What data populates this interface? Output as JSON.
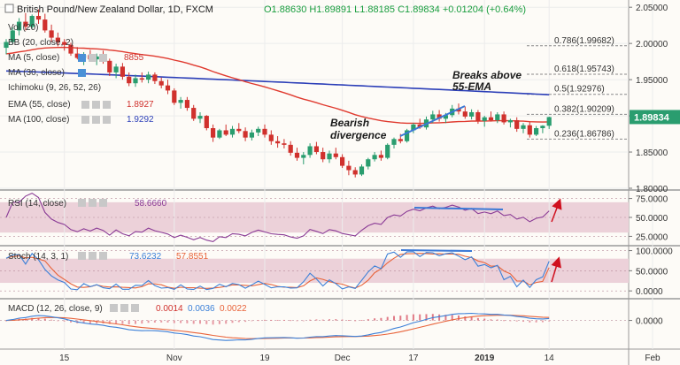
{
  "header": {
    "title": "British Pound/New Zealand Dollar, 1D, FXCM",
    "ohlc": "O1.88630  H1.89891  L1.88185  C1.89834  +0.01204 (+0.64%)",
    "change_color": "#1a9e3f"
  },
  "legend": {
    "vol": "Vol (20)",
    "bb": "BB (20, close, 2)",
    "ma5": "MA (5, close)",
    "ma5_value": "8855",
    "ma30": "MA (30, close)",
    "ichimoku": "Ichimoku (9, 26, 52, 26)",
    "ema55": "EMA (55, close)",
    "ema55_value": "1.8927",
    "ma100": "MA (100, close)",
    "ma100_value": "1.9292"
  },
  "annotations": {
    "breaks_line1": "Breaks above",
    "breaks_line2": "55-EMA",
    "bearish_line1": "Bearish",
    "bearish_line2": "divergence"
  },
  "fib_levels": [
    {
      "label": "0.786(1.99682)",
      "value": 1.99682
    },
    {
      "label": "0.618(1.95743)",
      "value": 1.95743
    },
    {
      "label": "0.5(1.92976)",
      "value": 1.92976
    },
    {
      "label": "0.382(1.90209)",
      "value": 1.90209
    },
    {
      "label": "0.236(1.86786)",
      "value": 1.86786
    }
  ],
  "price_axis": {
    "ticks": [
      "2.05000",
      "2.00000",
      "1.95000",
      "1.90000",
      "1.85000",
      "1.80000"
    ],
    "tick_values": [
      2.05,
      2.0,
      1.95,
      1.9,
      1.85,
      1.8
    ],
    "current_label": "1.89834",
    "current_value": 1.89834,
    "ylim": [
      1.8,
      2.06
    ]
  },
  "rsi": {
    "label": "RSI (14, close)",
    "value": "58.6660",
    "ticks": [
      "75.0000",
      "50.0000",
      "25.0000"
    ],
    "tick_values": [
      75,
      50,
      25
    ],
    "ylim": [
      15,
      85
    ],
    "band": [
      30,
      70
    ]
  },
  "stoch": {
    "label": "Stoch (14, 3, 1)",
    "k_value": "73.6232",
    "d_value": "57.8551",
    "ticks": [
      "100.0000",
      "50.0000",
      "0.0000"
    ],
    "tick_values": [
      100,
      50,
      0
    ],
    "ylim": [
      -15,
      110
    ],
    "band": [
      20,
      80
    ]
  },
  "macd": {
    "label": "MACD (12, 26, close, 9)",
    "hist": "0.0014",
    "macd_val": "0.0036",
    "signal": "0.0022",
    "ticks": [
      "0.0000"
    ],
    "tick_values": [
      0
    ],
    "ylim": [
      -0.04,
      0.03
    ]
  },
  "time_axis": {
    "labels": [
      "15",
      "Nov",
      "19",
      "Dec",
      "17",
      "2019",
      "14",
      "Feb"
    ],
    "label_index": [
      9,
      26,
      40,
      52,
      63,
      74,
      84,
      100
    ]
  },
  "colors": {
    "up": "#2a9d6f",
    "down": "#d0312d",
    "ema": "#e03a2f",
    "ma100": "#2c3fb8",
    "rsi": "#8a3b96",
    "stoch_k": "#3c80d8",
    "stoch_d": "#e8633a",
    "trend": "#3a78d6",
    "arrow": "#d0101e",
    "band": "#ecd1d9"
  },
  "chart_data": {
    "type": "candlestick",
    "title": "British Pound/New Zealand Dollar, 1D, FXCM",
    "x_start": 0,
    "candles": [
      [
        1.994,
        2.006,
        1.985,
        2.002
      ],
      [
        2.002,
        2.022,
        1.999,
        2.018
      ],
      [
        2.018,
        2.035,
        2.011,
        2.03
      ],
      [
        2.03,
        2.042,
        2.018,
        2.023
      ],
      [
        2.023,
        2.04,
        2.02,
        2.038
      ],
      [
        2.038,
        2.047,
        2.027,
        2.033
      ],
      [
        2.033,
        2.041,
        2.015,
        2.018
      ],
      [
        2.018,
        2.026,
        2.002,
        2.008
      ],
      [
        2.008,
        2.015,
        1.996,
        2.002
      ],
      [
        2.002,
        2.006,
        1.99,
        1.998
      ],
      [
        1.998,
        2.001,
        1.983,
        1.986
      ],
      [
        1.986,
        1.995,
        1.978,
        1.98
      ],
      [
        1.98,
        1.988,
        1.97,
        1.984
      ],
      [
        1.984,
        1.991,
        1.976,
        1.978
      ],
      [
        1.978,
        1.986,
        1.97,
        1.982
      ],
      [
        1.982,
        1.99,
        1.972,
        1.976
      ],
      [
        1.976,
        1.979,
        1.955,
        1.96
      ],
      [
        1.96,
        1.972,
        1.952,
        1.968
      ],
      [
        1.968,
        1.973,
        1.95,
        1.954
      ],
      [
        1.954,
        1.96,
        1.941,
        1.945
      ],
      [
        1.945,
        1.957,
        1.94,
        1.952
      ],
      [
        1.952,
        1.96,
        1.946,
        1.95
      ],
      [
        1.95,
        1.961,
        1.945,
        1.957
      ],
      [
        1.957,
        1.96,
        1.944,
        1.948
      ],
      [
        1.948,
        1.953,
        1.938,
        1.942
      ],
      [
        1.942,
        1.95,
        1.93,
        1.935
      ],
      [
        1.935,
        1.938,
        1.915,
        1.918
      ],
      [
        1.918,
        1.926,
        1.91,
        1.922
      ],
      [
        1.922,
        1.926,
        1.907,
        1.911
      ],
      [
        1.911,
        1.915,
        1.893,
        1.896
      ],
      [
        1.896,
        1.905,
        1.89,
        1.9
      ],
      [
        1.9,
        1.901,
        1.88,
        1.883
      ],
      [
        1.883,
        1.888,
        1.864,
        1.87
      ],
      [
        1.87,
        1.882,
        1.868,
        1.88
      ],
      [
        1.88,
        1.888,
        1.872,
        1.874
      ],
      [
        1.874,
        1.886,
        1.87,
        1.882
      ],
      [
        1.882,
        1.89,
        1.876,
        1.879
      ],
      [
        1.879,
        1.884,
        1.865,
        1.87
      ],
      [
        1.87,
        1.881,
        1.866,
        1.877
      ],
      [
        1.877,
        1.885,
        1.872,
        1.882
      ],
      [
        1.882,
        1.888,
        1.87,
        1.874
      ],
      [
        1.874,
        1.88,
        1.86,
        1.865
      ],
      [
        1.865,
        1.872,
        1.856,
        1.862
      ],
      [
        1.862,
        1.868,
        1.855,
        1.86
      ],
      [
        1.86,
        1.865,
        1.845,
        1.849
      ],
      [
        1.849,
        1.856,
        1.838,
        1.842
      ],
      [
        1.842,
        1.85,
        1.833,
        1.846
      ],
      [
        1.846,
        1.862,
        1.842,
        1.858
      ],
      [
        1.858,
        1.864,
        1.847,
        1.85
      ],
      [
        1.85,
        1.856,
        1.836,
        1.84
      ],
      [
        1.84,
        1.852,
        1.835,
        1.848
      ],
      [
        1.848,
        1.856,
        1.84,
        1.843
      ],
      [
        1.843,
        1.847,
        1.828,
        1.831
      ],
      [
        1.831,
        1.838,
        1.818,
        1.825
      ],
      [
        1.825,
        1.829,
        1.815,
        1.819
      ],
      [
        1.819,
        1.833,
        1.817,
        1.83
      ],
      [
        1.83,
        1.842,
        1.826,
        1.84
      ],
      [
        1.84,
        1.85,
        1.837,
        1.846
      ],
      [
        1.846,
        1.852,
        1.838,
        1.842
      ],
      [
        1.842,
        1.862,
        1.84,
        1.86
      ],
      [
        1.86,
        1.87,
        1.855,
        1.868
      ],
      [
        1.868,
        1.875,
        1.862,
        1.865
      ],
      [
        1.865,
        1.882,
        1.863,
        1.88
      ],
      [
        1.88,
        1.89,
        1.876,
        1.888
      ],
      [
        1.888,
        1.896,
        1.882,
        1.884
      ],
      [
        1.884,
        1.899,
        1.881,
        1.895
      ],
      [
        1.895,
        1.907,
        1.89,
        1.902
      ],
      [
        1.902,
        1.908,
        1.892,
        1.896
      ],
      [
        1.896,
        1.904,
        1.89,
        1.901
      ],
      [
        1.901,
        1.915,
        1.898,
        1.91
      ],
      [
        1.91,
        1.917,
        1.902,
        1.906
      ],
      [
        1.906,
        1.913,
        1.896,
        1.899
      ],
      [
        1.899,
        1.909,
        1.895,
        1.905
      ],
      [
        1.905,
        1.908,
        1.889,
        1.893
      ],
      [
        1.893,
        1.9,
        1.885,
        1.898
      ],
      [
        1.898,
        1.906,
        1.892,
        1.894
      ],
      [
        1.894,
        1.905,
        1.89,
        1.902
      ],
      [
        1.902,
        1.906,
        1.888,
        1.891
      ],
      [
        1.891,
        1.896,
        1.884,
        1.894
      ],
      [
        1.894,
        1.898,
        1.878,
        1.882
      ],
      [
        1.882,
        1.89,
        1.876,
        1.887
      ],
      [
        1.887,
        1.892,
        1.87,
        1.874
      ],
      [
        1.874,
        1.886,
        1.872,
        1.883
      ],
      [
        1.883,
        1.887,
        1.876,
        1.8863
      ],
      [
        1.8863,
        1.8989,
        1.8819,
        1.8983
      ]
    ],
    "series": [
      {
        "name": "EMA (55, close)",
        "last": 1.8927
      },
      {
        "name": "MA (100, close)",
        "last": 1.9292
      }
    ],
    "ylim": [
      1.8,
      2.06
    ]
  }
}
